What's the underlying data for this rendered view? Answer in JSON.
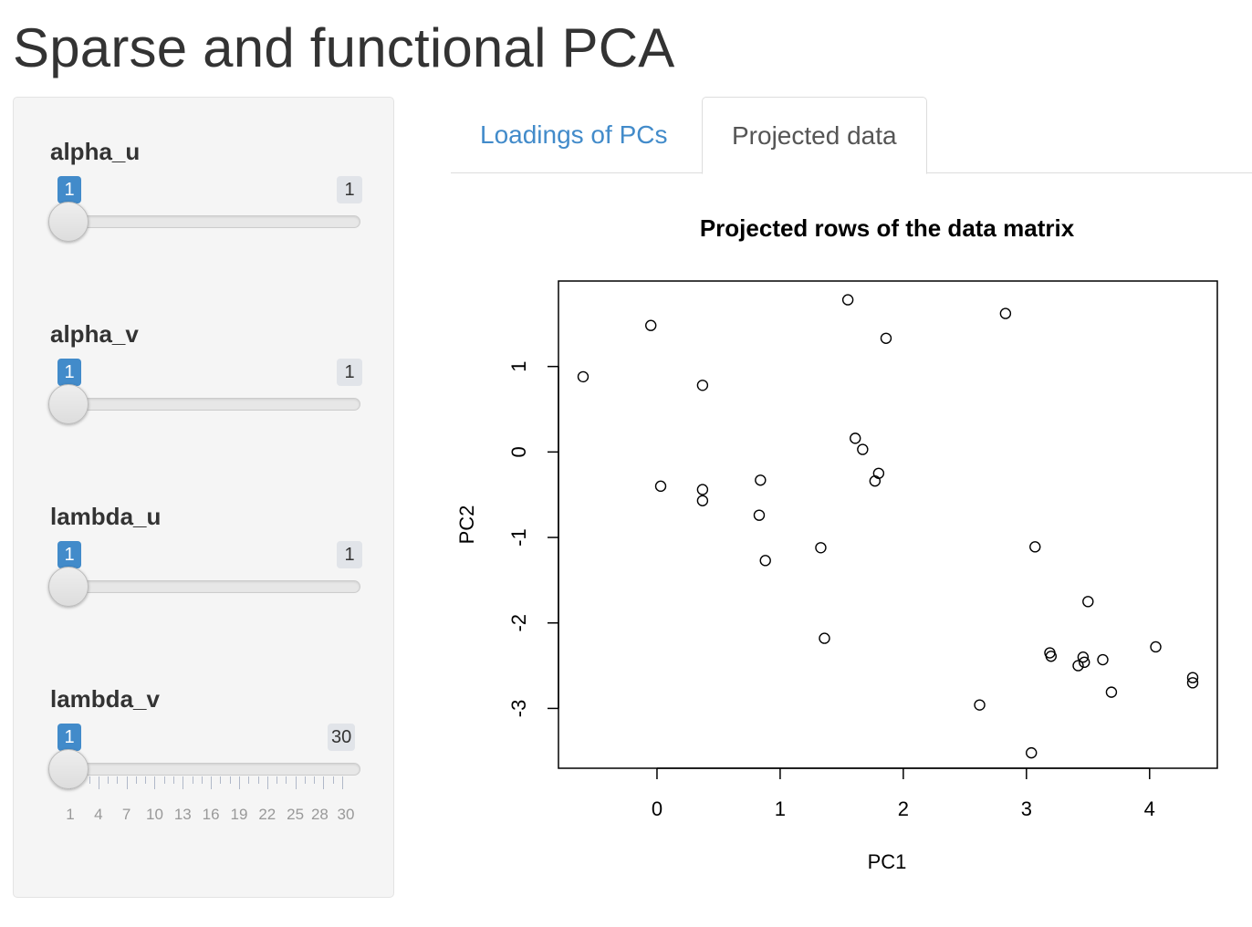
{
  "page": {
    "title": "Sparse and functional PCA"
  },
  "sliders": [
    {
      "label": "alpha_u",
      "value": "1",
      "max": "1",
      "fraction": 0
    },
    {
      "label": "alpha_v",
      "value": "1",
      "max": "1",
      "fraction": 0
    },
    {
      "label": "lambda_u",
      "value": "1",
      "max": "1",
      "fraction": 0
    },
    {
      "label": "lambda_v",
      "value": "1",
      "max": "30",
      "fraction": 0,
      "tick_labels": [
        "1",
        "4",
        "7",
        "10",
        "13",
        "16",
        "19",
        "22",
        "25",
        "28",
        "30"
      ]
    }
  ],
  "tabs": [
    {
      "label": "Loadings of PCs",
      "active": false
    },
    {
      "label": "Projected data",
      "active": true
    }
  ],
  "chart_data": {
    "type": "scatter",
    "title": "Projected rows of the data matrix",
    "xlabel": "PC1",
    "ylabel": "PC2",
    "xlim": [
      -0.8,
      4.55
    ],
    "ylim": [
      -3.7,
      2.0
    ],
    "xticks": [
      0,
      1,
      2,
      3,
      4
    ],
    "yticks": [
      1,
      0,
      -1,
      -2,
      -3
    ],
    "marker": "open-circle",
    "grid": false,
    "legend": "none",
    "x": [
      -0.6,
      -0.05,
      0.37,
      1.55,
      1.86,
      2.83,
      0.03,
      0.37,
      0.37,
      0.84,
      0.83,
      0.88,
      1.61,
      1.67,
      1.8,
      1.77,
      1.33,
      1.36,
      3.07,
      3.5,
      3.19,
      3.2,
      3.46,
      3.47,
      3.42,
      3.62,
      3.69,
      4.05,
      4.35,
      4.35,
      2.62,
      3.04
    ],
    "y": [
      0.88,
      1.48,
      0.78,
      1.78,
      1.33,
      1.62,
      -0.4,
      -0.44,
      -0.57,
      -0.33,
      -0.74,
      -1.27,
      0.16,
      0.03,
      -0.25,
      -0.34,
      -1.12,
      -2.18,
      -1.11,
      -1.75,
      -2.35,
      -2.39,
      -2.4,
      -2.46,
      -2.5,
      -2.43,
      -2.81,
      -2.28,
      -2.64,
      -2.7,
      -2.96,
      -3.52
    ]
  },
  "colors": {
    "accent": "#428bca",
    "panel_bg": "#f5f5f5",
    "text": "#333333"
  }
}
